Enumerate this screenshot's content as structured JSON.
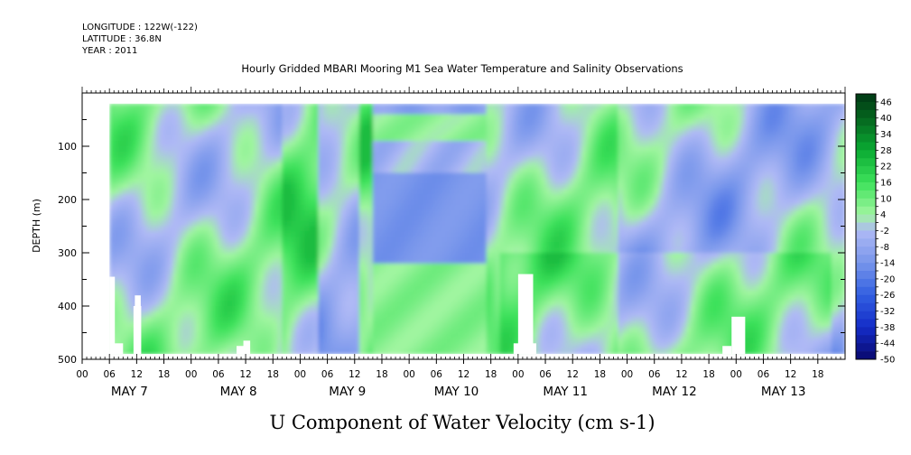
{
  "header": {
    "longitude": "LONGITUDE : 122W(-122)",
    "latitude": "LATITUDE : 36.8N",
    "year": "YEAR : 2011",
    "title": "Hourly Gridded MBARI Mooring M1 Sea Water Temperature and Salinity Observations"
  },
  "footer": {
    "variable_title": "U Component of Water Velocity (cm s-1)"
  },
  "chart_data": {
    "type": "heatmap",
    "variable": "U Component of Water Velocity (cm s-1)",
    "ylabel": "DEPTH (m)",
    "xlabel": "",
    "y_axis": {
      "ticks": [
        100,
        200,
        300,
        400,
        500
      ],
      "range": [
        0,
        500
      ],
      "inverted": true
    },
    "x_axis": {
      "hour_ticks": [
        "00",
        "06",
        "12",
        "18",
        "00",
        "06",
        "12",
        "18",
        "00",
        "06",
        "12",
        "18",
        "00",
        "06",
        "12",
        "18",
        "00",
        "06",
        "12",
        "18",
        "00",
        "06",
        "12",
        "18",
        "00",
        "06",
        "12",
        "18"
      ],
      "day_labels": [
        "MAY  7",
        "MAY  8",
        "MAY  9",
        "MAY 10",
        "MAY 11",
        "MAY 12",
        "MAY 13"
      ],
      "start": "2011-05-07 00:00",
      "end": "2011-05-13 23:00"
    },
    "data_extent": {
      "depth_range": [
        20,
        490
      ],
      "time_start": "2011-05-07 06:00",
      "time_end": "2011-05-13 23:00"
    },
    "colorbar": {
      "labels": [
        "46",
        "40",
        "34",
        "28",
        "22",
        "16",
        "10",
        "4",
        "-2",
        "-8",
        "-14",
        "-20",
        "-26",
        "-32",
        "-38",
        "-44",
        "-50"
      ],
      "range": [
        -50,
        49
      ],
      "step": 3
    },
    "grid": false
  }
}
